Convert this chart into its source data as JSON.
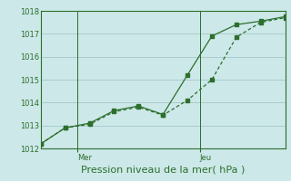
{
  "title": "Pression niveau de la mer( hPa )",
  "ylim": [
    1012,
    1018
  ],
  "yticks": [
    1012,
    1013,
    1014,
    1015,
    1016,
    1017,
    1018
  ],
  "background_color": "#cce8e8",
  "grid_color": "#aacccc",
  "line_color": "#2d6e2d",
  "series1_x": [
    0,
    1,
    2,
    3,
    4,
    5,
    6,
    7,
    8,
    9,
    10
  ],
  "series1_y": [
    1012.2,
    1012.9,
    1013.05,
    1013.6,
    1013.8,
    1013.45,
    1014.1,
    1015.0,
    1016.85,
    1017.5,
    1017.7
  ],
  "series2_x": [
    0,
    1,
    2,
    3,
    4,
    5,
    6,
    7,
    8,
    9,
    10
  ],
  "series2_y": [
    1012.2,
    1012.9,
    1013.1,
    1013.65,
    1013.85,
    1013.48,
    1015.2,
    1016.9,
    1017.4,
    1017.55,
    1017.75
  ],
  "xlim": [
    0,
    10
  ],
  "mer_x": 1.5,
  "jeu_x": 6.5,
  "mer_tick_x": 1.5,
  "jeu_tick_x": 6.5,
  "xlabel_fontsize": 8,
  "tick_fontsize": 6,
  "label_color": "#2d6e2d",
  "spine_color": "#2d6e2d"
}
